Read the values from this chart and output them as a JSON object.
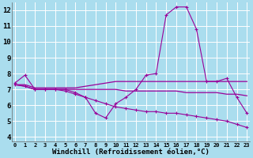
{
  "background_color": "#aaddee",
  "grid_color": "#ffffff",
  "line_color": "#990099",
  "xlabel": "Windchill (Refroidissement éolien,°C)",
  "xlabel_fontsize": 6.5,
  "ytick_fontsize": 6.5,
  "xtick_fontsize": 5.0,
  "yticks": [
    4,
    5,
    6,
    7,
    8,
    9,
    10,
    11,
    12
  ],
  "xticks": [
    0,
    1,
    2,
    3,
    4,
    5,
    6,
    7,
    8,
    9,
    10,
    11,
    12,
    13,
    14,
    15,
    16,
    17,
    18,
    19,
    20,
    21,
    22,
    23
  ],
  "xlim": [
    -0.3,
    23.3
  ],
  "ylim": [
    3.7,
    12.5
  ],
  "series": [
    {
      "x": [
        0,
        1,
        2,
        3,
        4,
        5,
        6,
        7,
        8,
        9,
        10,
        11,
        12,
        13,
        14,
        15,
        16,
        17,
        18,
        19,
        20,
        21,
        22,
        23
      ],
      "y": [
        7.4,
        7.9,
        7.0,
        7.0,
        7.0,
        7.0,
        6.8,
        6.5,
        5.5,
        5.2,
        6.1,
        6.5,
        7.0,
        7.9,
        8.0,
        11.7,
        12.2,
        12.2,
        10.8,
        7.5,
        7.5,
        7.7,
        6.5,
        5.5
      ],
      "marker": true,
      "linewidth": 0.8
    },
    {
      "x": [
        0,
        1,
        2,
        3,
        4,
        5,
        6,
        7,
        8,
        9,
        10,
        11,
        12,
        13,
        14,
        15,
        16,
        17,
        18,
        19,
        20,
        21,
        22,
        23
      ],
      "y": [
        7.3,
        7.3,
        7.1,
        7.1,
        7.1,
        7.1,
        7.1,
        7.2,
        7.3,
        7.4,
        7.5,
        7.5,
        7.5,
        7.5,
        7.5,
        7.5,
        7.5,
        7.5,
        7.5,
        7.5,
        7.5,
        7.5,
        7.5,
        7.5
      ],
      "marker": false,
      "linewidth": 0.9
    },
    {
      "x": [
        0,
        1,
        2,
        3,
        4,
        5,
        6,
        7,
        8,
        9,
        10,
        11,
        12,
        13,
        14,
        15,
        16,
        17,
        18,
        19,
        20,
        21,
        22,
        23
      ],
      "y": [
        7.3,
        7.2,
        7.0,
        7.0,
        7.0,
        7.0,
        7.0,
        7.0,
        7.0,
        7.0,
        7.0,
        6.9,
        6.9,
        6.9,
        6.9,
        6.9,
        6.9,
        6.8,
        6.8,
        6.8,
        6.8,
        6.7,
        6.7,
        6.6
      ],
      "marker": false,
      "linewidth": 0.9
    },
    {
      "x": [
        0,
        1,
        2,
        3,
        4,
        5,
        6,
        7,
        8,
        9,
        10,
        11,
        12,
        13,
        14,
        15,
        16,
        17,
        18,
        19,
        20,
        21,
        22,
        23
      ],
      "y": [
        7.3,
        7.2,
        7.0,
        7.0,
        7.0,
        6.9,
        6.7,
        6.5,
        6.3,
        6.1,
        5.9,
        5.8,
        5.7,
        5.6,
        5.6,
        5.5,
        5.5,
        5.4,
        5.3,
        5.2,
        5.1,
        5.0,
        4.8,
        4.6
      ],
      "marker": true,
      "linewidth": 0.8
    }
  ]
}
